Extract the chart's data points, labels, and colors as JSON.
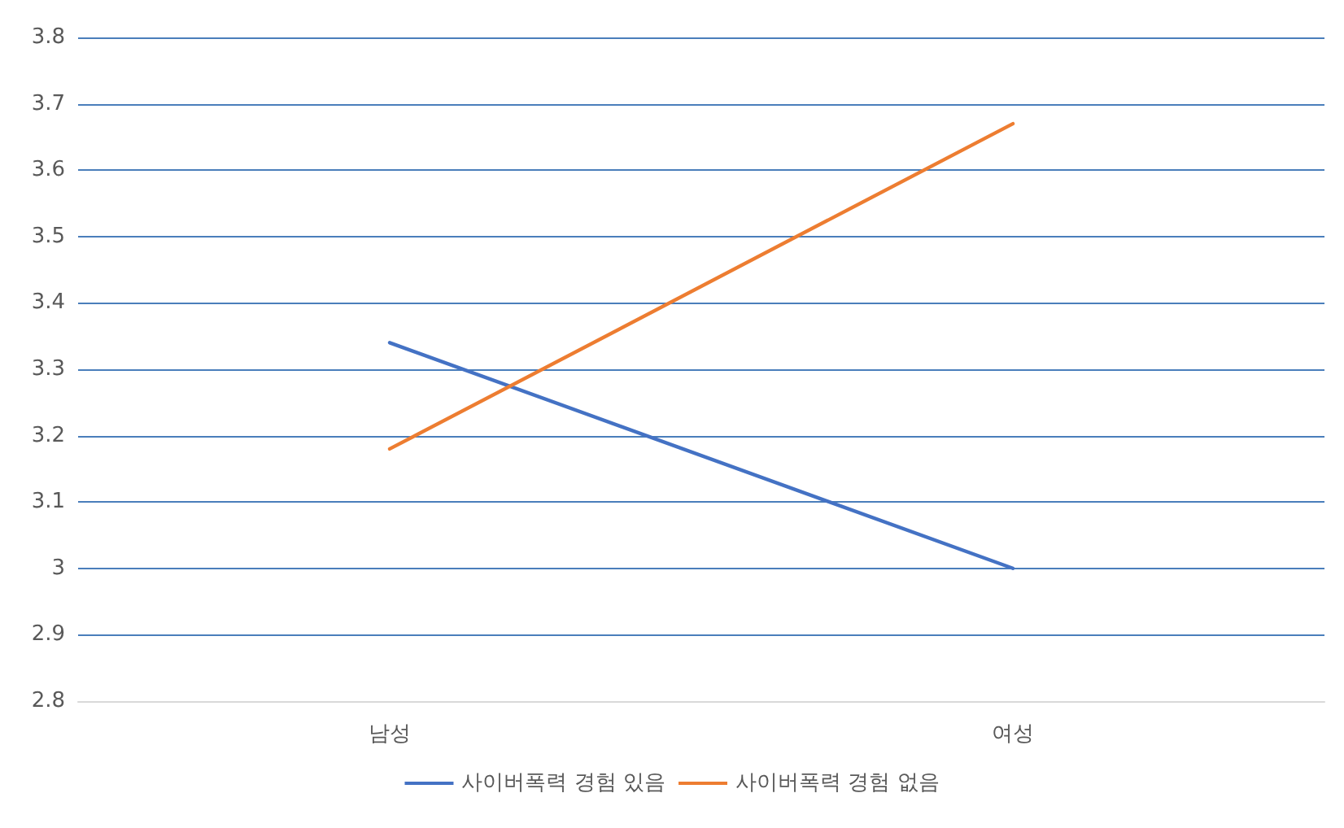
{
  "chart_data": {
    "type": "line",
    "categories": [
      "남성",
      "여성"
    ],
    "series": [
      {
        "name": "사이버폭력 경험 있음",
        "color": "#4472c4",
        "values": [
          3.34,
          3.0
        ]
      },
      {
        "name": "사이버폭력 경험 없음",
        "color": "#ed7d31",
        "values": [
          3.18,
          3.67
        ]
      }
    ],
    "ylim": [
      2.8,
      3.8
    ],
    "yticks": [
      2.8,
      2.9,
      3,
      3.1,
      3.2,
      3.3,
      3.4,
      3.5,
      3.6,
      3.7,
      3.8
    ],
    "grid": "y",
    "legend": "bottom",
    "marker": "none",
    "line_style": "solid"
  }
}
